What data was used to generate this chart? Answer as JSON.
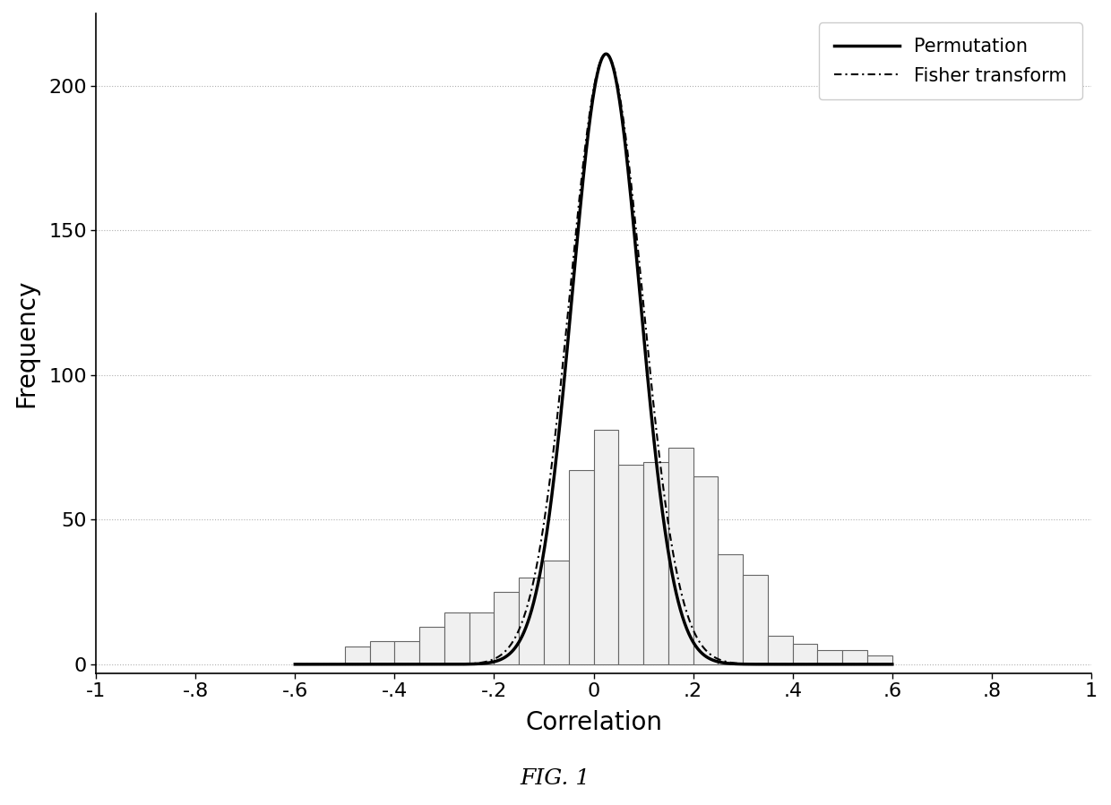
{
  "title": "",
  "xlabel": "Correlation",
  "ylabel": "Frequency",
  "figcaption": "FIG. 1",
  "xlim": [
    -1.0,
    1.0
  ],
  "ylim": [
    -3,
    225
  ],
  "yticks": [
    0,
    50,
    100,
    150,
    200
  ],
  "xtick_labels": [
    "-1",
    "-.8",
    "-.6",
    "-.4",
    "-.2",
    "0",
    ".2",
    ".4",
    ".6",
    ".8",
    "1"
  ],
  "xtick_values": [
    -1.0,
    -0.8,
    -0.6,
    -0.4,
    -0.2,
    0.0,
    0.2,
    0.4,
    0.6,
    0.8,
    1.0
  ],
  "bar_left_edges": [
    -0.85,
    -0.8,
    -0.75,
    -0.7,
    -0.65,
    -0.6,
    -0.55,
    -0.5,
    -0.45,
    -0.4,
    -0.35,
    -0.3,
    -0.25,
    -0.2,
    -0.15,
    -0.1,
    -0.05,
    0.0,
    0.05,
    0.1,
    0.15,
    0.2,
    0.25,
    0.3,
    0.35,
    0.4,
    0.45,
    0.5,
    0.55,
    0.6
  ],
  "bar_heights": [
    0,
    0,
    0,
    0,
    0,
    0,
    0,
    6,
    8,
    8,
    13,
    18,
    18,
    25,
    30,
    36,
    67,
    81,
    69,
    70,
    75,
    65,
    38,
    31,
    10,
    7,
    5,
    5,
    3,
    0
  ],
  "bar_width": 0.05,
  "curve_mean": 0.025,
  "curve_std": 0.068,
  "curve_peak": 211,
  "fisher_mean": 0.025,
  "fisher_std": 0.073,
  "fisher_peak": 211,
  "background_color": "#ffffff",
  "bar_facecolor": "#f0f0f0",
  "bar_edgecolor": "#666666",
  "bar_linewidth": 0.8,
  "permutation_color": "#000000",
  "permutation_lw": 2.5,
  "fisher_color": "#000000",
  "fisher_lw": 1.5,
  "fisher_dashes": [
    6,
    3,
    1,
    3
  ],
  "grid_color": "#b0b0b0",
  "grid_linestyle": ":",
  "grid_lw": 0.8,
  "legend_loc": "upper right",
  "xlabel_fontsize": 20,
  "ylabel_fontsize": 20,
  "tick_fontsize": 16,
  "legend_fontsize": 15,
  "caption_fontsize": 18,
  "font_family": "DejaVu Sans"
}
